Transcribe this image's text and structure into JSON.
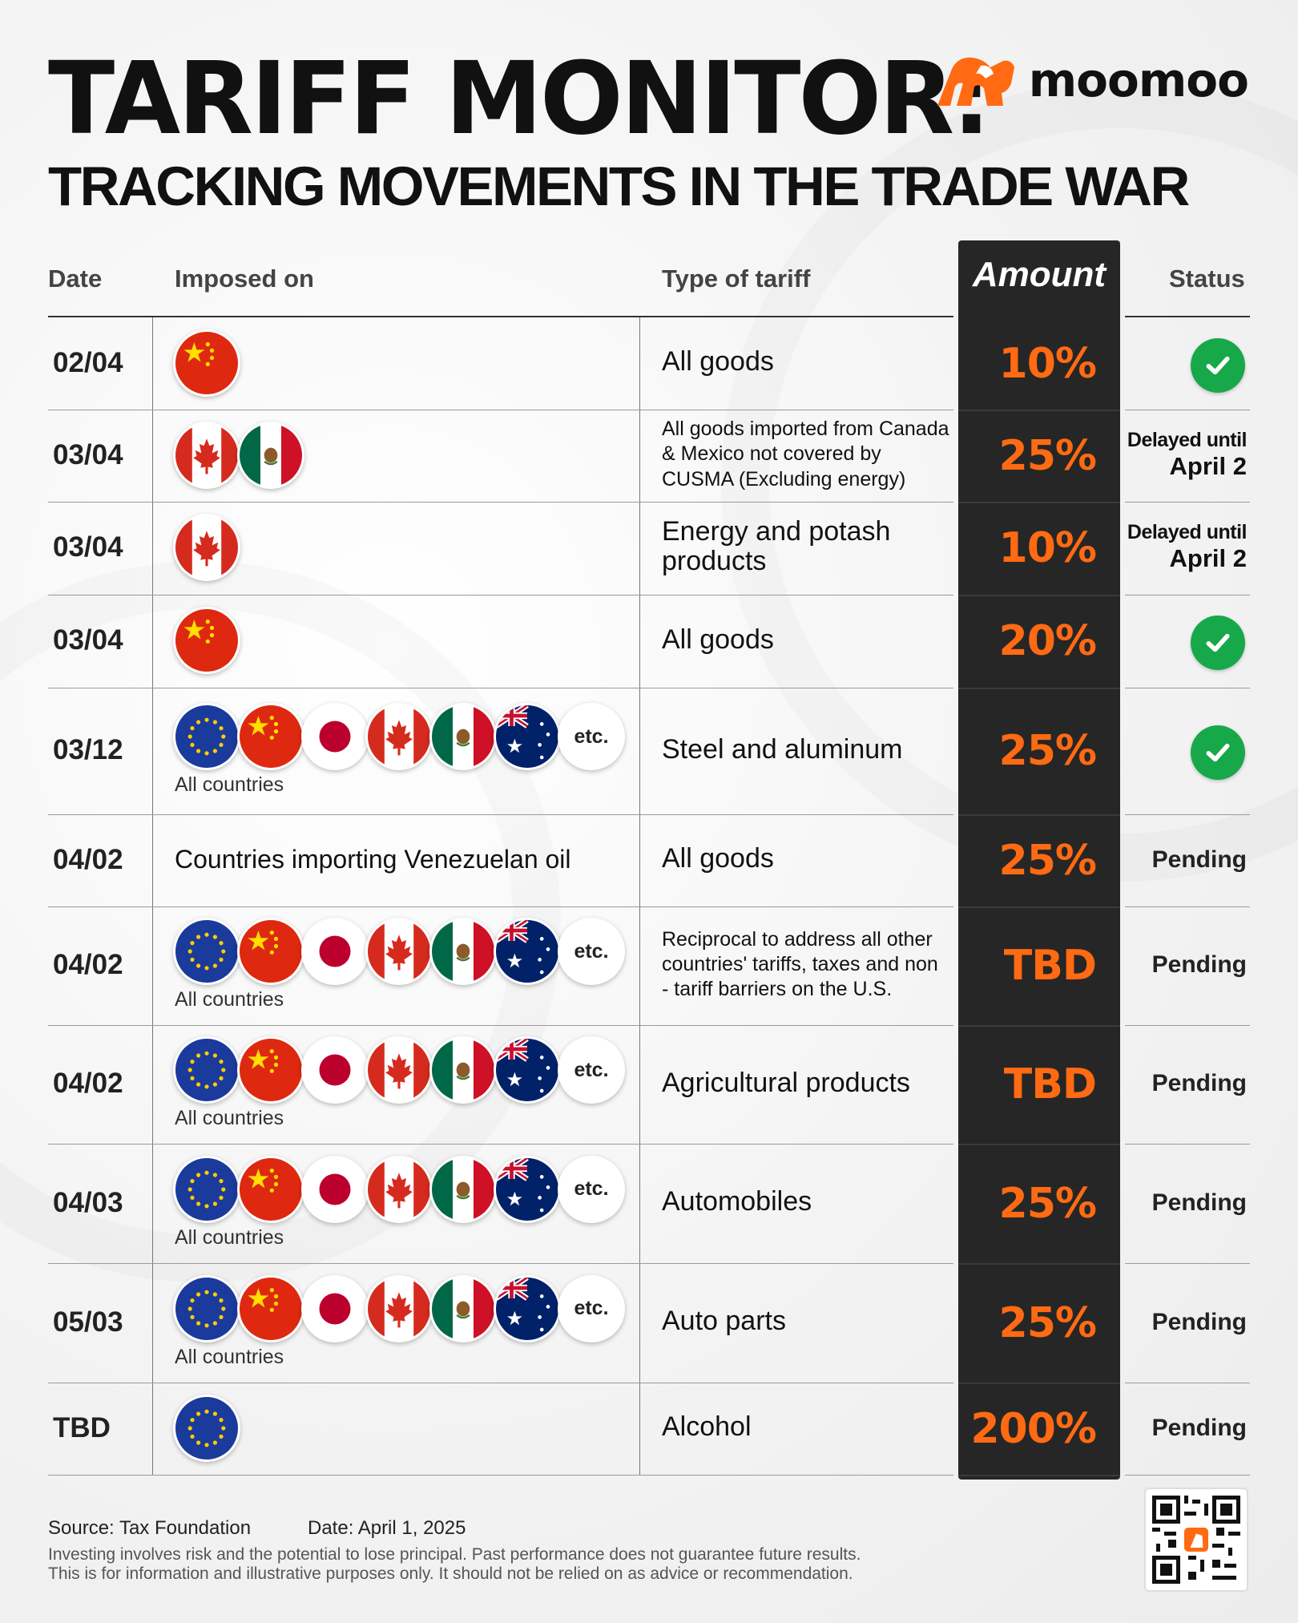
{
  "header": {
    "title": "TARIFF MONITOR:",
    "subtitle": "TRACKING MOVEMENTS IN THE TRADE WAR",
    "brand": "moomoo"
  },
  "columns": {
    "date": "Date",
    "imposed_on": "Imposed on",
    "type": "Type of tariff",
    "amount": "Amount",
    "status": "Status"
  },
  "rows": [
    {
      "date": "02/04",
      "flags": [
        "china"
      ],
      "type": "All goods",
      "amount": "10%",
      "status": "check"
    },
    {
      "date": "03/04",
      "flags": [
        "canada",
        "mexico"
      ],
      "type": "All goods imported from Canada & Mexico not covered by CUSMA (Excluding energy)",
      "amount": "25%",
      "status_a": "Delayed until",
      "status_b": "April 2"
    },
    {
      "date": "03/04",
      "flags": [
        "canada"
      ],
      "type": "Energy and potash products",
      "amount": "10%",
      "status_a": "Delayed until",
      "status_b": "April 2"
    },
    {
      "date": "03/04",
      "flags": [
        "china"
      ],
      "type": "All goods",
      "amount": "20%",
      "status": "check"
    },
    {
      "date": "03/12",
      "flags": [
        "eu",
        "china",
        "japan",
        "canada",
        "mexico",
        "australia",
        "etc"
      ],
      "all_countries": "All countries",
      "type": "Steel and aluminum",
      "amount": "25%",
      "status": "check"
    },
    {
      "date": "04/02",
      "imposed_text": "Countries importing Venezuelan oil",
      "type": "All goods",
      "amount": "25%",
      "status": "Pending"
    },
    {
      "date": "04/02",
      "flags": [
        "eu",
        "china",
        "japan",
        "canada",
        "mexico",
        "australia",
        "etc"
      ],
      "all_countries": "All countries",
      "type": "Reciprocal to address all other countries' tariffs, taxes and non - tariff barriers on the U.S.",
      "amount": "TBD",
      "status": "Pending"
    },
    {
      "date": "04/02",
      "flags": [
        "eu",
        "china",
        "japan",
        "canada",
        "mexico",
        "australia",
        "etc"
      ],
      "all_countries": "All countries",
      "type": "Agricultural products",
      "amount": "TBD",
      "status": "Pending"
    },
    {
      "date": "04/03",
      "flags": [
        "eu",
        "china",
        "japan",
        "canada",
        "mexico",
        "australia",
        "etc"
      ],
      "all_countries": "All countries",
      "type": "Automobiles",
      "amount": "25%",
      "status": "Pending"
    },
    {
      "date": "05/03",
      "flags": [
        "eu",
        "china",
        "japan",
        "canada",
        "mexico",
        "australia",
        "etc"
      ],
      "all_countries": "All countries",
      "type": "Auto parts",
      "amount": "25%",
      "status": "Pending"
    },
    {
      "date": "TBD",
      "flags": [
        "eu"
      ],
      "type": "Alcohol",
      "amount": "200%",
      "status": "Pending"
    }
  ],
  "etc_label": "etc.",
  "footer": {
    "source": "Source: Tax Foundation",
    "date": "Date: April 1, 2025",
    "disclaimer1": "Investing involves risk and the potential to lose principal. Past performance does not guarantee future results.",
    "disclaimer2": "This is for information and illustrative purposes only. It should not be relied on as advice or recommendation."
  },
  "colors": {
    "accent": "#ff6a13",
    "amount_bg": "#262626",
    "check": "#17a84a"
  }
}
